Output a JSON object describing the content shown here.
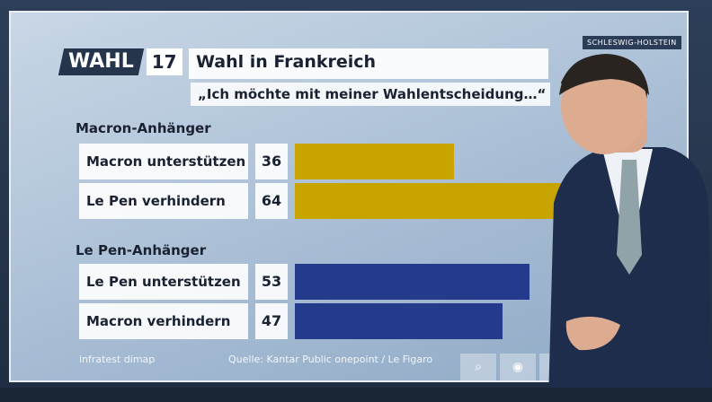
{
  "logo": {
    "wahl": "WAHL",
    "number": "17"
  },
  "header": {
    "title": "Wahl in Frankreich",
    "subtitle": "„Ich möchte mit meiner Wahlentscheidung…“",
    "region": "SCHLESWIG-HOLSTEIN"
  },
  "colors": {
    "macron": "#c8a400",
    "lepen": "#243a8c"
  },
  "chart_data": {
    "type": "bar",
    "orientation": "horizontal",
    "xlim": [
      0,
      100
    ],
    "groups": [
      {
        "label": "Macron-Anhänger",
        "rows": [
          {
            "label": "Macron unterstützen",
            "value": 36
          },
          {
            "label": "Le Pen verhindern",
            "value": 64
          }
        ]
      },
      {
        "label": "Le Pen-Anhänger",
        "rows": [
          {
            "label": "Le Pen unterstützen",
            "value": 53
          },
          {
            "label": "Macron verhindern",
            "value": 47
          }
        ]
      }
    ]
  },
  "footer": {
    "left": "infratest dimap",
    "source": "Quelle: Kantar Public onepoint / Le Figaro"
  },
  "controls": {
    "search_icon": "search-icon",
    "record_icon": "record-icon",
    "close_icon": "close-icon"
  }
}
